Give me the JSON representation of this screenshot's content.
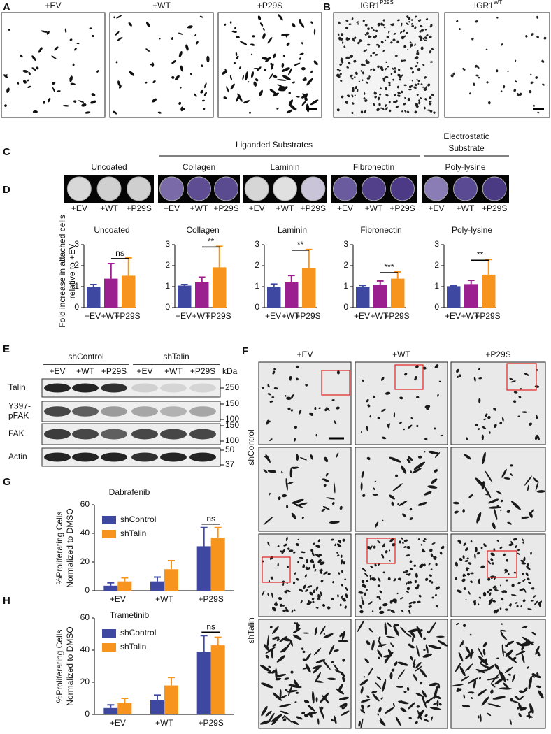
{
  "panel_labels": {
    "a": "A",
    "b": "B",
    "c": "C",
    "d": "D",
    "e": "E",
    "f": "F",
    "g": "G",
    "h": "H"
  },
  "panel_a": {
    "columns": [
      "+EV",
      "+WT",
      "+P29S"
    ]
  },
  "panel_b": {
    "columns": [
      {
        "base": "IGR1",
        "sup": "P29S"
      },
      {
        "base": "IGR1",
        "sup": "WT"
      }
    ]
  },
  "panel_c": {
    "groups": [
      {
        "label": [
          "Liganded Substrates"
        ]
      },
      {
        "label": [
          "Electrostatic",
          "Substrate"
        ]
      }
    ],
    "substrates": [
      "Uncoated",
      "Collagen",
      "Laminin",
      "Fibronectin",
      "Poly-lysine"
    ]
  },
  "panel_d": {
    "dish_labels": [
      [
        "+EV",
        "+WT",
        "+P29S"
      ],
      [
        "+EV",
        "+WT",
        "+P29S"
      ],
      [
        "+EV",
        "+WT",
        "+P29S"
      ],
      [
        "+EV",
        "+WT",
        "+P29S"
      ],
      [
        "+EV",
        "+WT",
        "+P29S"
      ]
    ],
    "y_label": [
      "Fold increase in attached cells",
      "relative to +EV"
    ]
  },
  "chart_data": [
    {
      "type": "bar",
      "title": "Uncoated",
      "categories": [
        "+EV",
        "+WT",
        "+P29S"
      ],
      "values": [
        1.0,
        1.38,
        1.52
      ],
      "errors": [
        0.1,
        0.72,
        0.85
      ],
      "colors": [
        "#3f48a0",
        "#9b1f8e",
        "#f7941d"
      ],
      "ylim": [
        0,
        3
      ],
      "yticks": [
        0,
        1,
        2,
        3
      ],
      "significance": "ns"
    },
    {
      "type": "bar",
      "title": "Collagen",
      "categories": [
        "+EV",
        "+WT",
        "+P29S"
      ],
      "values": [
        1.05,
        1.2,
        1.92
      ],
      "errors": [
        0.05,
        0.25,
        1.0
      ],
      "colors": [
        "#3f48a0",
        "#9b1f8e",
        "#f7941d"
      ],
      "ylim": [
        0,
        3
      ],
      "yticks": [
        0,
        1,
        2,
        3
      ],
      "significance": "**"
    },
    {
      "type": "bar",
      "title": "Laminin",
      "categories": [
        "+EV",
        "+WT",
        "+P29S"
      ],
      "values": [
        1.0,
        1.2,
        1.87
      ],
      "errors": [
        0.12,
        0.33,
        0.9
      ],
      "colors": [
        "#3f48a0",
        "#9b1f8e",
        "#f7941d"
      ],
      "ylim": [
        0,
        3
      ],
      "yticks": [
        0,
        1,
        2,
        3
      ],
      "significance": "**"
    },
    {
      "type": "bar",
      "title": "Fibronectin",
      "categories": [
        "+EV",
        "+WT",
        "+P29S"
      ],
      "values": [
        1.0,
        1.07,
        1.38
      ],
      "errors": [
        0.06,
        0.2,
        0.32
      ],
      "colors": [
        "#3f48a0",
        "#9b1f8e",
        "#f7941d"
      ],
      "ylim": [
        0,
        3
      ],
      "yticks": [
        0,
        1,
        2,
        3
      ],
      "significance": "***"
    },
    {
      "type": "bar",
      "title": "Poly-lysine",
      "categories": [
        "+EV",
        "+WT",
        "+P29S"
      ],
      "values": [
        1.02,
        1.12,
        1.57
      ],
      "errors": [
        0.02,
        0.18,
        0.72
      ],
      "colors": [
        "#3f48a0",
        "#9b1f8e",
        "#f7941d"
      ],
      "ylim": [
        0,
        3
      ],
      "yticks": [
        0,
        1,
        2,
        3
      ],
      "significance": "**"
    },
    {
      "type": "grouped-bar",
      "title": "Dabrafenib",
      "y_label": [
        "%Proliferating Cells",
        "Normalized to DMSO"
      ],
      "categories": [
        "+EV",
        "+WT",
        "+P29S"
      ],
      "series": [
        {
          "name": "shControl",
          "color": "#3f48a0",
          "values": [
            3.5,
            6.5,
            31
          ],
          "errors": [
            2,
            3,
            13
          ]
        },
        {
          "name": "shTalin",
          "color": "#f7941d",
          "values": [
            6.5,
            15,
            37
          ],
          "errors": [
            2.5,
            6,
            7
          ]
        }
      ],
      "ylim": [
        0,
        60
      ],
      "yticks": [
        0,
        20,
        40,
        60
      ],
      "significance": "ns"
    },
    {
      "type": "grouped-bar",
      "title": "Trametinib",
      "y_label": [
        "%Proliferating Cells",
        "Normalized to DMSO"
      ],
      "categories": [
        "+EV",
        "+WT",
        "+P29S"
      ],
      "series": [
        {
          "name": "shControl",
          "color": "#3f48a0",
          "values": [
            4,
            9,
            39
          ],
          "errors": [
            2,
            3,
            10
          ]
        },
        {
          "name": "shTalin",
          "color": "#f7941d",
          "values": [
            7,
            18,
            43
          ],
          "errors": [
            3,
            5,
            5
          ]
        }
      ],
      "ylim": [
        0,
        60
      ],
      "yticks": [
        0,
        20,
        40,
        60
      ],
      "significance": "ns"
    }
  ],
  "panel_e": {
    "groups": [
      "shControl",
      "shTalin"
    ],
    "lanes": [
      [
        "+EV",
        "+WT",
        "+P29S"
      ],
      [
        "+EV",
        "+WT",
        "+P29S"
      ]
    ],
    "unit": "kDa",
    "rows": [
      {
        "label": [
          "Talin"
        ],
        "markers": [
          250
        ]
      },
      {
        "label": [
          "Y397-",
          "pFAK"
        ],
        "markers": [
          150,
          100
        ]
      },
      {
        "label": [
          "FAK"
        ],
        "markers": [
          150,
          100
        ]
      },
      {
        "label": [
          "Actin"
        ],
        "markers": [
          50,
          37
        ]
      }
    ]
  },
  "panel_f": {
    "columns": [
      "+EV",
      "+WT",
      "+P29S"
    ],
    "rows": [
      "shControl",
      "shTalin"
    ]
  }
}
